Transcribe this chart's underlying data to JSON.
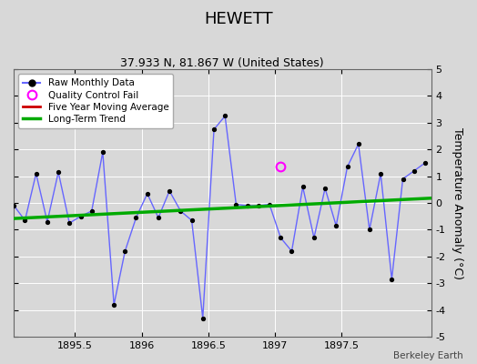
{
  "title": "HEWETT",
  "subtitle": "37.933 N, 81.867 W (United States)",
  "ylabel": "Temperature Anomaly (°C)",
  "watermark": "Berkeley Earth",
  "xlim": [
    1895.04,
    1898.17
  ],
  "ylim": [
    -5,
    5
  ],
  "xticks": [
    1895.5,
    1896.0,
    1896.5,
    1897.0,
    1897.5
  ],
  "yticks": [
    -5,
    -4,
    -3,
    -2,
    -1,
    0,
    1,
    2,
    3,
    4,
    5
  ],
  "bg_color": "#d8d8d8",
  "plot_bg_color": "#d8d8d8",
  "raw_x": [
    1895.042,
    1895.125,
    1895.208,
    1895.292,
    1895.375,
    1895.458,
    1895.542,
    1895.625,
    1895.708,
    1895.792,
    1895.875,
    1895.958,
    1896.042,
    1896.125,
    1896.208,
    1896.292,
    1896.375,
    1896.458,
    1896.542,
    1896.625,
    1896.708,
    1896.792,
    1896.875,
    1896.958,
    1897.042,
    1897.125,
    1897.208,
    1897.292,
    1897.375,
    1897.458,
    1897.542,
    1897.625,
    1897.708,
    1897.792,
    1897.875,
    1897.958,
    1898.042,
    1898.125
  ],
  "raw_y": [
    -0.1,
    -0.65,
    1.1,
    -0.7,
    1.15,
    -0.75,
    -0.5,
    -0.3,
    1.9,
    -3.8,
    -1.8,
    -0.55,
    0.35,
    -0.55,
    0.45,
    -0.3,
    -0.65,
    -4.3,
    2.75,
    3.25,
    -0.05,
    -0.1,
    -0.1,
    -0.05,
    -1.3,
    -1.8,
    0.6,
    -1.3,
    0.55,
    -0.85,
    1.35,
    2.2,
    -1.0,
    1.1,
    -2.85,
    0.9,
    1.2,
    1.5
  ],
  "qc_fail_x": [
    1897.042
  ],
  "qc_fail_y": [
    1.35
  ],
  "trend_x": [
    1895.04,
    1898.17
  ],
  "trend_y": [
    -0.58,
    0.18
  ],
  "raw_line_color": "#6666ff",
  "marker_color": "#000000",
  "qc_color": "#ff00ff",
  "trend_color": "#00aa00",
  "mavg_color": "#cc0000",
  "grid_color": "#ffffff",
  "title_fontsize": 13,
  "subtitle_fontsize": 9,
  "label_fontsize": 9,
  "tick_fontsize": 8
}
